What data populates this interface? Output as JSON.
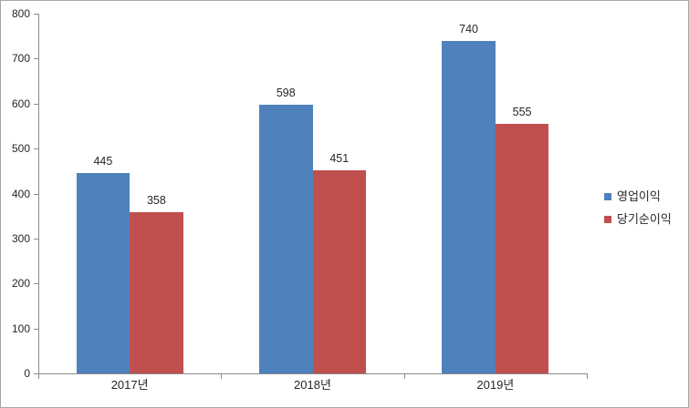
{
  "chart_data": {
    "type": "bar",
    "title": "",
    "xlabel": "",
    "ylabel": "",
    "categories": [
      "2017년",
      "2018년",
      "2019년"
    ],
    "series": [
      {
        "name": "영업이익",
        "color": "#4f81bd",
        "values": [
          445,
          598,
          740
        ]
      },
      {
        "name": "당기순이익",
        "color": "#c0504d",
        "values": [
          358,
          451,
          555
        ]
      }
    ],
    "ylim": [
      0,
      800
    ],
    "ytick_step": 100,
    "ytick_labels": [
      "0",
      "100",
      "200",
      "300",
      "400",
      "500",
      "600",
      "700",
      "800"
    ],
    "grid": false,
    "data_labels": true,
    "legend_position": "right"
  },
  "colors": {
    "background": "#ffffff",
    "frame_border": "#a6a6a6",
    "axis_line": "#8c8c8c",
    "text": "#262626",
    "series_blue": "#4f81bd",
    "series_red": "#c0504d"
  }
}
